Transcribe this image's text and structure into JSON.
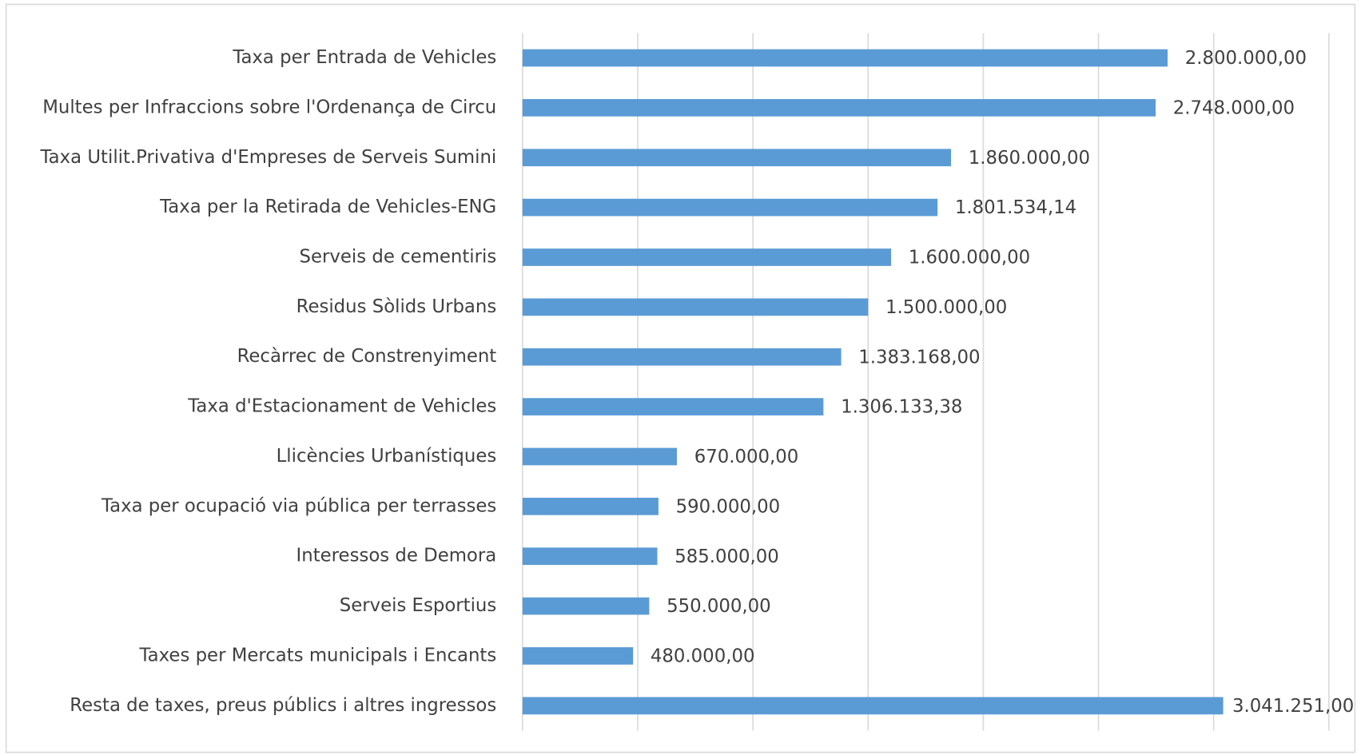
{
  "chart_data": {
    "type": "bar",
    "orientation": "horizontal",
    "categories": [
      "Taxa per Entrada de Vehicles",
      "Multes per Infraccions sobre l'Ordenança de Circu",
      "Taxa Utilit.Privativa d'Empreses de Serveis Sumini",
      "Taxa per la Retirada de Vehicles-ENG",
      "Serveis de cementiris",
      "Residus Sòlids Urbans",
      "Recàrrec de Constrenyiment",
      "Taxa d'Estacionament de Vehicles",
      "Llicències Urbanístiques",
      "Taxa per ocupació via pública per terrasses",
      "Interessos de Demora",
      "Serveis Esportius",
      "Taxes per Mercats municipals i Encants",
      "Resta de taxes, preus públics i altres ingressos"
    ],
    "values": [
      2800000,
      2748000,
      1860000,
      1801534.14,
      1600000,
      1500000,
      1383168,
      1306133.38,
      670000,
      590000,
      585000,
      550000,
      480000,
      3041251
    ],
    "value_labels": [
      "2.800.000,00",
      "2.748.000,00",
      "1.860.000,00",
      "1.801.534,14",
      "1.600.000,00",
      "1.500.000,00",
      "1.383.168,00",
      "1.306.133,38",
      "670.000,00",
      "590.000,00",
      "585.000,00",
      "550.000,00",
      "480.000,00",
      "3.041.251,00"
    ],
    "color": "#5b9bd5",
    "xlim": [
      0,
      3500000
    ],
    "xticks": [
      0,
      500000,
      1000000,
      1500000,
      2000000,
      2500000,
      3000000,
      3500000
    ],
    "grid": true
  }
}
